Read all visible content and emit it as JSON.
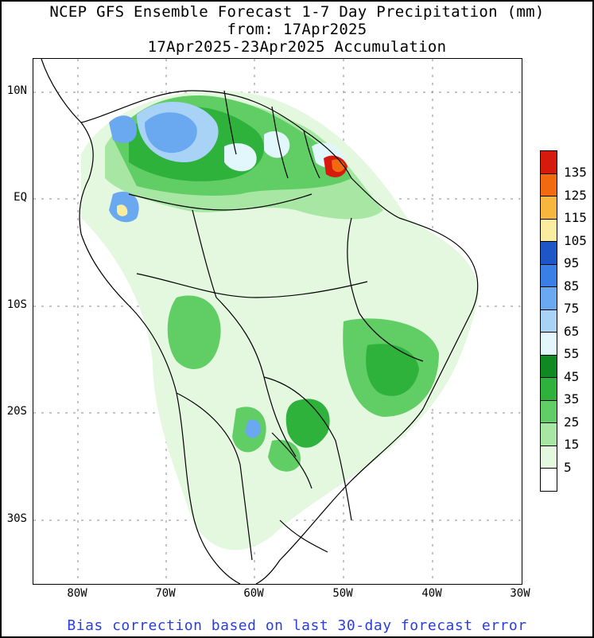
{
  "title": {
    "line1": "NCEP GFS Ensemble Forecast 1-7 Day Precipitation (mm)",
    "line2": "from: 17Apr2025",
    "line3": "17Apr2025-23Apr2025 Accumulation"
  },
  "axes": {
    "lat_labels": [
      "10N",
      "EQ",
      "10S",
      "20S",
      "30S"
    ],
    "lon_labels": [
      "80W",
      "70W",
      "60W",
      "50W",
      "40W",
      "30W"
    ]
  },
  "legend": {
    "unit": "mm",
    "levels": [
      {
        "label": "135",
        "color": "#d61b0e"
      },
      {
        "label": "125",
        "color": "#f26a0f"
      },
      {
        "label": "115",
        "color": "#f7b73f"
      },
      {
        "label": "105",
        "color": "#fbeda0"
      },
      {
        "label": "95",
        "color": "#1e56c8"
      },
      {
        "label": "85",
        "color": "#3a7fe6"
      },
      {
        "label": "75",
        "color": "#6aa8f0"
      },
      {
        "label": "65",
        "color": "#a9d2f7"
      },
      {
        "label": "55",
        "color": "#e1f7fb"
      },
      {
        "label": "45",
        "color": "#0f8a23"
      },
      {
        "label": "35",
        "color": "#2fb23c"
      },
      {
        "label": "25",
        "color": "#60cd65"
      },
      {
        "label": "15",
        "color": "#a8e6a4"
      },
      {
        "label": "5",
        "color": "#e4f8e0"
      },
      {
        "label": "",
        "color": "#ffffff"
      }
    ]
  },
  "footer": "Bias correction based on last 30-day forecast error"
}
